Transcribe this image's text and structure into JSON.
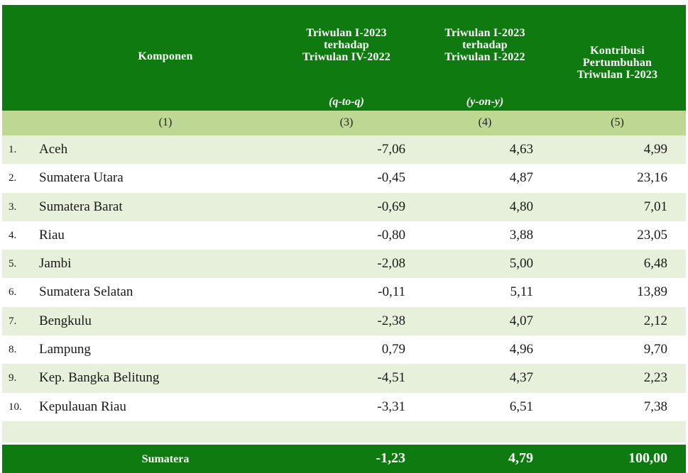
{
  "header": {
    "komponen": "Komponen",
    "col3": [
      "Triwulan I-2023",
      "terhadap",
      "Triwulan IV-2022"
    ],
    "col4": [
      "Triwulan I-2023",
      "terhadap",
      "Triwulan I-2022"
    ],
    "col5": [
      "Kontribusi",
      "Pertumbuhan",
      "Triwulan I-2023"
    ],
    "col3_sub": "(q-to-q)",
    "col4_sub": "(y-on-y)"
  },
  "numbering": {
    "c1": "(1)",
    "c3": "(3)",
    "c4": "(4)",
    "c5": "(5)"
  },
  "rows": [
    {
      "no": "1.",
      "name": "Aceh",
      "qtq": "-7,06",
      "yoy": "4,63",
      "kontribusi": "4,99"
    },
    {
      "no": "2.",
      "name": "Sumatera Utara",
      "qtq": "-0,45",
      "yoy": "4,87",
      "kontribusi": "23,16"
    },
    {
      "no": "3.",
      "name": "Sumatera Barat",
      "qtq": "-0,69",
      "yoy": "4,80",
      "kontribusi": "7,01"
    },
    {
      "no": "4.",
      "name": "Riau",
      "qtq": "-0,80",
      "yoy": "3,88",
      "kontribusi": "23,05"
    },
    {
      "no": "5.",
      "name": "Jambi",
      "qtq": "-2,08",
      "yoy": "5,00",
      "kontribusi": "6,48"
    },
    {
      "no": "6.",
      "name": "Sumatera Selatan",
      "qtq": "-0,11",
      "yoy": "5,11",
      "kontribusi": "13,89"
    },
    {
      "no": "7.",
      "name": "Bengkulu",
      "qtq": "-2,38",
      "yoy": "4,07",
      "kontribusi": "2,12"
    },
    {
      "no": "8.",
      "name": "Lampung",
      "qtq": "0,79",
      "yoy": "4,96",
      "kontribusi": "9,70"
    },
    {
      "no": "9.",
      "name": "Kep. Bangka Belitung",
      "qtq": "-4,51",
      "yoy": "4,37",
      "kontribusi": "2,23"
    },
    {
      "no": "10.",
      "name": "Kepulauan Riau",
      "qtq": "-3,31",
      "yoy": "6,51",
      "kontribusi": "7,38"
    }
  ],
  "total": {
    "label": "Sumatera",
    "qtq": "-1,23",
    "yoy": "4,79",
    "kontribusi": "100,00"
  },
  "colors": {
    "header_green": "#0f7a10",
    "number_row_green": "#bed793",
    "stripe_green": "#e6f0da"
  }
}
